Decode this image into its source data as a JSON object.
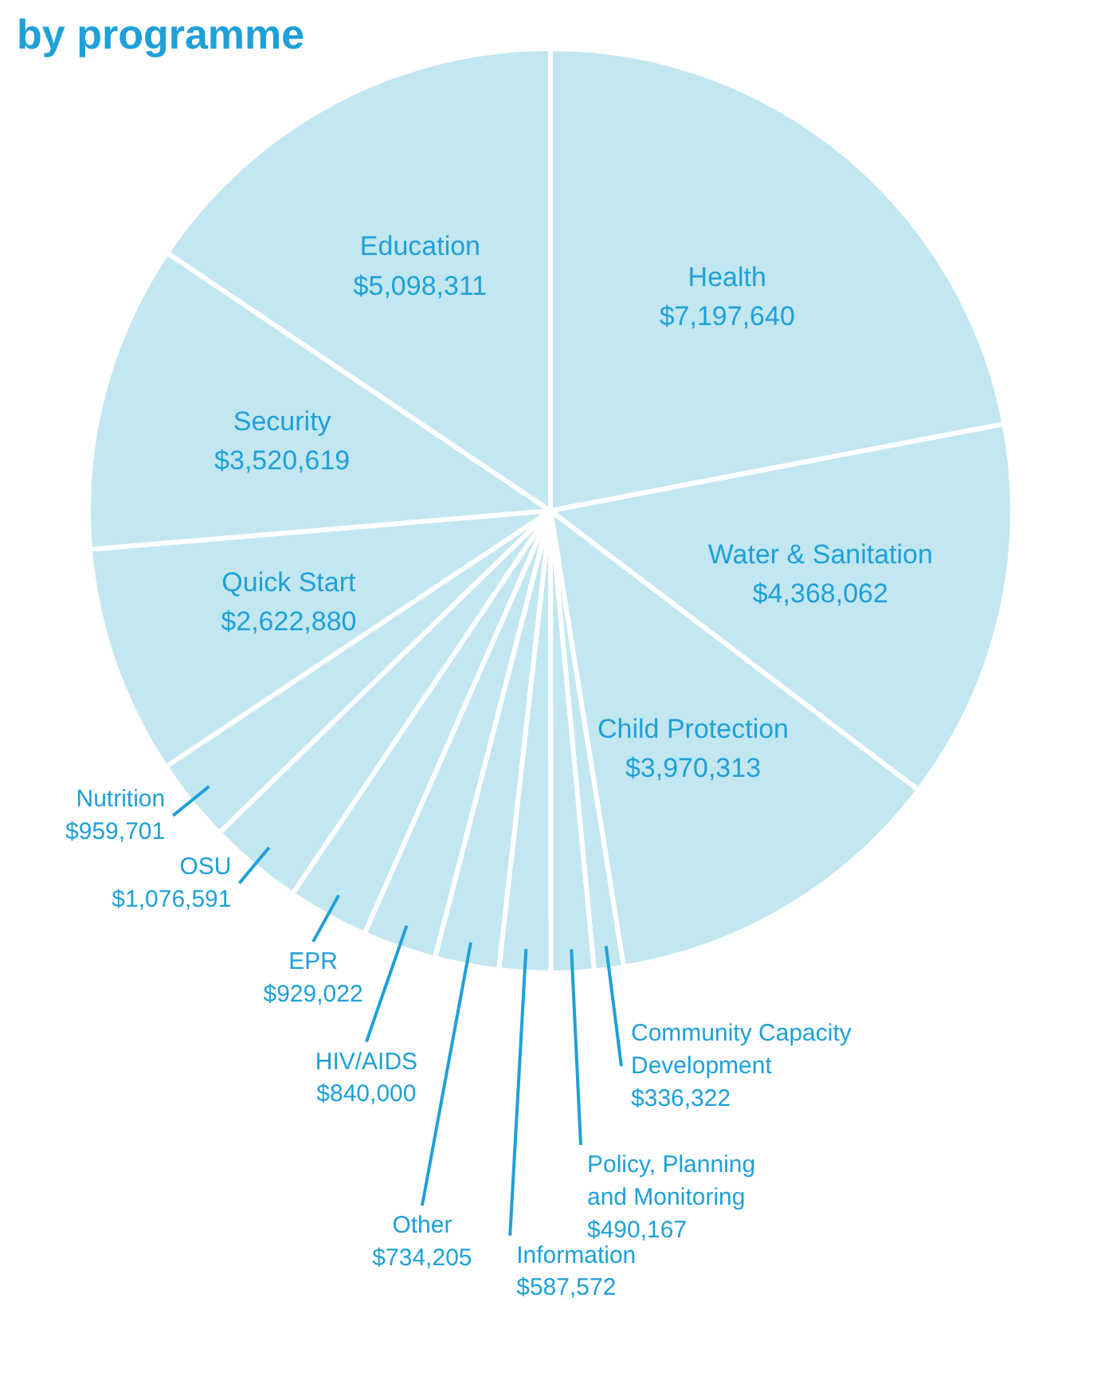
{
  "chart_data": {
    "type": "pie",
    "title": "by programme",
    "categories": [
      "Health",
      "Water & Sanitation",
      "Child Protection",
      "Community Capacity Development",
      "Policy, Planning and Monitoring",
      "Information",
      "Other",
      "HIV/AIDS",
      "EPR",
      "OSU",
      "Nutrition",
      "Quick Start",
      "Security",
      "Education"
    ],
    "values": [
      7197640,
      4368062,
      3970313,
      336322,
      490167,
      587572,
      734205,
      840000,
      929022,
      1076591,
      959701,
      2622880,
      3520619,
      5098311
    ],
    "value_labels": [
      "$7,197,640",
      "$4,368,062",
      "$3,970,313",
      "$336,322",
      "$490,167",
      "$587,572",
      "$734,205",
      "$840,000",
      "$929,022",
      "$1,076,591",
      "$959,701",
      "$2,622,880",
      "$3,520,619",
      "$5,098,311"
    ],
    "colors": [
      "#c2e7f1",
      "#c2e7f1",
      "#c2e7f1",
      "#c2e7f1",
      "#c2e7f1",
      "#c2e7f1",
      "#c2e7f1",
      "#c2e7f1",
      "#c2e7f1",
      "#c2e7f1",
      "#c2e7f1",
      "#c2e7f1",
      "#c2e7f1",
      "#c2e7f1"
    ]
  }
}
